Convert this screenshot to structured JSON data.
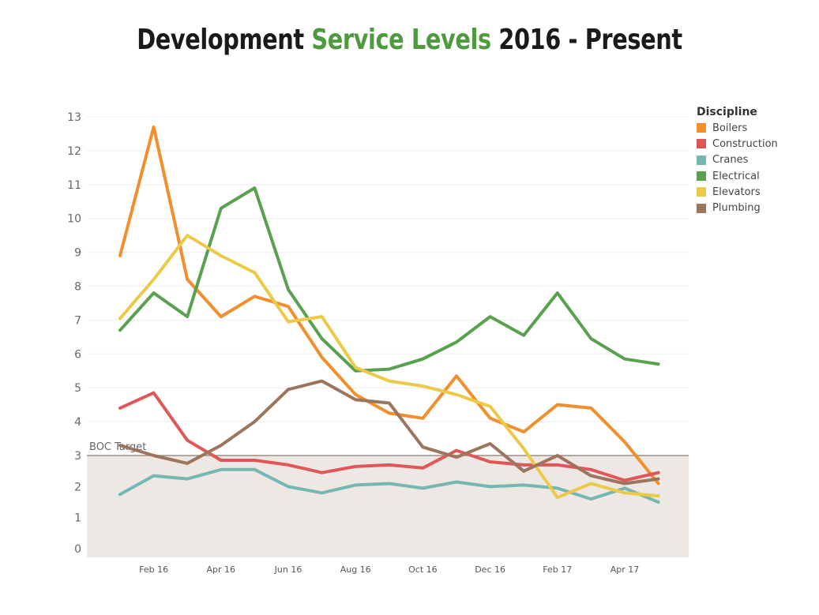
{
  "title": {
    "part1": "Development ",
    "part2": "Service Levels",
    "part3": " 2016 - Present"
  },
  "chart_data": {
    "type": "line",
    "x": [
      "Jan 16",
      "Feb 16",
      "Mar 16",
      "Apr 16",
      "May 16",
      "Jun 16",
      "Jul 16",
      "Aug 16",
      "Sep 16",
      "Oct 16",
      "Nov 16",
      "Dec 16",
      "Jan 17",
      "Feb 17",
      "Mar 17",
      "Apr 17",
      "May 17"
    ],
    "x_tick_labels": [
      "Feb 16",
      "Apr 16",
      "Jun 16",
      "Aug 16",
      "Oct 16",
      "Dec 16",
      "Feb 17",
      "Apr 17"
    ],
    "y_ticks": [
      0,
      1,
      2,
      3,
      4,
      5,
      6,
      7,
      8,
      9,
      10,
      11,
      12,
      13
    ],
    "ylim": [
      0,
      13
    ],
    "grid": true,
    "legend_title": "Discipline",
    "legend_position": "right",
    "reference_line": {
      "label": "BOC Target",
      "value": 3,
      "band": [
        0,
        3
      ]
    },
    "series": [
      {
        "name": "Boilers",
        "color": "#f28e2b",
        "values": [
          8.9,
          12.7,
          8.2,
          7.1,
          7.7,
          7.4,
          5.9,
          4.8,
          4.25,
          4.1,
          5.35,
          4.1,
          3.7,
          4.5,
          4.4,
          3.4,
          2.1
        ]
      },
      {
        "name": "Construction",
        "color": "#e15759",
        "values": [
          4.4,
          4.85,
          3.45,
          2.85,
          2.85,
          2.7,
          2.45,
          2.65,
          2.7,
          2.6,
          3.15,
          2.8,
          2.7,
          2.7,
          2.55,
          2.2,
          2.45
        ]
      },
      {
        "name": "Cranes",
        "color": "#76b7b2",
        "values": [
          1.75,
          2.35,
          2.25,
          2.55,
          2.55,
          2.0,
          1.8,
          2.05,
          2.1,
          1.95,
          2.15,
          2.0,
          2.05,
          1.95,
          1.6,
          1.95,
          1.5
        ]
      },
      {
        "name": "Electrical",
        "color": "#59a14f",
        "values": [
          6.7,
          7.8,
          7.1,
          10.3,
          10.9,
          7.9,
          6.45,
          5.5,
          5.55,
          5.85,
          6.35,
          7.1,
          6.55,
          7.8,
          6.45,
          5.85,
          5.7
        ]
      },
      {
        "name": "Elevators",
        "color": "#edc948",
        "values": [
          7.05,
          8.2,
          9.5,
          8.9,
          8.4,
          6.95,
          7.1,
          5.6,
          5.2,
          5.05,
          4.8,
          4.45,
          3.2,
          1.65,
          2.1,
          1.8,
          1.7
        ]
      },
      {
        "name": "Plumbing",
        "color": "#9c755f",
        "values": [
          3.3,
          3.0,
          2.75,
          3.3,
          4.0,
          4.95,
          5.2,
          4.65,
          4.55,
          3.25,
          2.95,
          3.35,
          2.5,
          3.0,
          2.35,
          2.1,
          2.25
        ]
      }
    ]
  }
}
